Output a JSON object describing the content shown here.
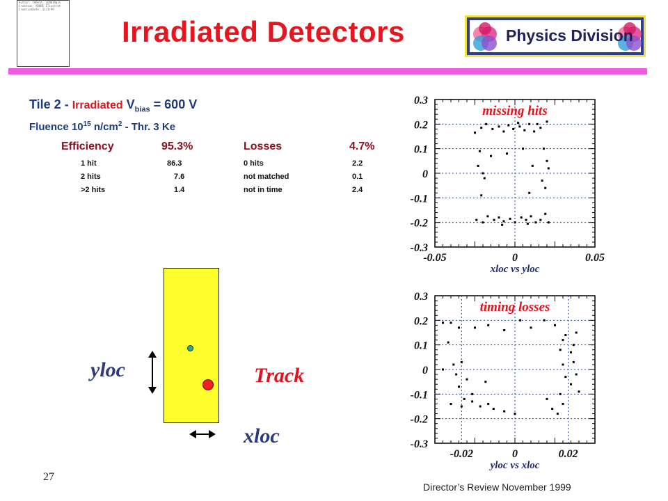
{
  "title": "Irradiated Detectors",
  "logo_text": "Physics Division",
  "stamp_lines": [
    "Author: TABATA, LENOIRgin",
    "Creation: ADOBE Illustrat",
    "CreationDate: 11/3/99"
  ],
  "tile": {
    "prefix": "Tile 2 - ",
    "irr": "Irradiated",
    "vbias_v": " V",
    "vbias_sub": "bias",
    "vbias_val": " = 600 V"
  },
  "fluence": {
    "a": "Fluence 10",
    "exp": "15",
    "b": " n/cm",
    "sq": "2",
    "c": " - Thr. 3 Ke"
  },
  "efficiency": {
    "label": "Efficiency",
    "value": "95.3%",
    "losses_label": "Losses",
    "losses_value": "4.7%"
  },
  "rows": [
    {
      "a": "1 hit",
      "av": "86.3",
      "b": "0 hits",
      "bv": "2.2"
    },
    {
      "a": "2 hits",
      "av": "7.6",
      "b": "not matched",
      "bv": "0.1"
    },
    {
      "a": ">2 hits",
      "av": "1.4",
      "b": "not in time",
      "bv": "2.4"
    }
  ],
  "labels": {
    "yloc": "yloc",
    "xloc": "xloc",
    "track": "Track"
  },
  "page_number": "27",
  "footer": "Director’s Review November 1999",
  "chart_data": [
    {
      "type": "scatter",
      "title": "missing hits",
      "xlabel": "xloc vs yloc",
      "xlim": [
        -0.05,
        0.05
      ],
      "ylim": [
        -0.3,
        0.3
      ],
      "xticks": [
        "-0.05",
        "0",
        "0.05"
      ],
      "yticks": [
        "0.3",
        "0.2",
        "0.1",
        "0",
        "-0.1",
        "-0.2",
        "-0.3"
      ],
      "points": [
        [
          -0.021,
          0.185
        ],
        [
          -0.018,
          0.2
        ],
        [
          -0.014,
          0.18
        ],
        [
          -0.01,
          0.19
        ],
        [
          -0.007,
          0.17
        ],
        [
          -0.004,
          0.195
        ],
        [
          -0.001,
          0.18
        ],
        [
          0.003,
          0.19
        ],
        [
          0.006,
          0.175
        ],
        [
          0.009,
          0.2
        ],
        [
          0.012,
          0.17
        ],
        [
          0.016,
          0.185
        ],
        [
          0.02,
          0.21
        ],
        [
          -0.025,
          0.165
        ],
        [
          0.002,
          0.205
        ],
        [
          0.014,
          0.2
        ],
        [
          -0.022,
          0.09
        ],
        [
          -0.02,
          0.0
        ],
        [
          -0.021,
          -0.09
        ],
        [
          -0.023,
          0.03
        ],
        [
          -0.019,
          -0.02
        ],
        [
          0.018,
          0.1
        ],
        [
          0.021,
          0.02
        ],
        [
          0.019,
          -0.06
        ],
        [
          0.02,
          0.05
        ],
        [
          0.017,
          -0.03
        ],
        [
          0.011,
          0.03
        ],
        [
          0.009,
          -0.08
        ],
        [
          -0.005,
          0.08
        ],
        [
          0.005,
          0.1
        ],
        [
          -0.015,
          0.07
        ],
        [
          -0.024,
          -0.19
        ],
        [
          -0.02,
          -0.2
        ],
        [
          -0.017,
          -0.175
        ],
        [
          -0.013,
          -0.19
        ],
        [
          -0.01,
          -0.18
        ],
        [
          -0.007,
          -0.195
        ],
        [
          -0.003,
          -0.185
        ],
        [
          0.0,
          -0.2
        ],
        [
          0.004,
          -0.18
        ],
        [
          0.007,
          -0.19
        ],
        [
          0.01,
          -0.175
        ],
        [
          0.013,
          -0.2
        ],
        [
          0.016,
          -0.19
        ],
        [
          0.019,
          -0.165
        ],
        [
          0.021,
          -0.2
        ],
        [
          -0.008,
          -0.21
        ],
        [
          0.008,
          -0.205
        ]
      ]
    },
    {
      "type": "scatter",
      "title": "timing losses",
      "xlabel": "yloc vs xloc",
      "xlim": [
        -0.03,
        0.03
      ],
      "ylim": [
        -0.3,
        0.3
      ],
      "xticks": [
        "-0.02",
        "0",
        "0.02"
      ],
      "yticks": [
        "0.3",
        "0.2",
        "0.1",
        "0",
        "-0.1",
        "-0.2",
        "-0.3"
      ],
      "points": [
        [
          -0.027,
          0.19
        ],
        [
          -0.024,
          0.19
        ],
        [
          -0.021,
          0.17
        ],
        [
          -0.015,
          0.17
        ],
        [
          -0.01,
          0.18
        ],
        [
          -0.004,
          0.16
        ],
        [
          0.002,
          0.2
        ],
        [
          0.006,
          0.17
        ],
        [
          0.011,
          0.2
        ],
        [
          0.015,
          0.18
        ],
        [
          0.019,
          0.14
        ],
        [
          0.023,
          0.15
        ],
        [
          -0.025,
          0.11
        ],
        [
          -0.023,
          0.02
        ],
        [
          -0.022,
          -0.02
        ],
        [
          -0.021,
          -0.07
        ],
        [
          -0.019,
          -0.12
        ],
        [
          -0.027,
          0.0
        ],
        [
          -0.02,
          0.03
        ],
        [
          -0.018,
          -0.04
        ],
        [
          -0.016,
          -0.1
        ],
        [
          0.017,
          0.08
        ],
        [
          0.018,
          0.02
        ],
        [
          0.019,
          -0.03
        ],
        [
          0.017,
          -0.1
        ],
        [
          0.018,
          -0.14
        ],
        [
          0.021,
          -0.06
        ],
        [
          0.022,
          0.03
        ],
        [
          0.023,
          -0.02
        ],
        [
          0.022,
          0.1
        ],
        [
          0.021,
          0.07
        ],
        [
          0.018,
          0.12
        ],
        [
          0.024,
          -0.09
        ],
        [
          -0.024,
          -0.14
        ],
        [
          -0.02,
          -0.15
        ],
        [
          -0.016,
          -0.13
        ],
        [
          -0.013,
          -0.15
        ],
        [
          -0.01,
          -0.14
        ],
        [
          -0.008,
          -0.16
        ],
        [
          -0.004,
          -0.17
        ],
        [
          0.0,
          -0.18
        ],
        [
          -0.011,
          -0.05
        ],
        [
          0.012,
          -0.12
        ],
        [
          0.014,
          -0.16
        ],
        [
          0.016,
          -0.18
        ]
      ]
    }
  ]
}
